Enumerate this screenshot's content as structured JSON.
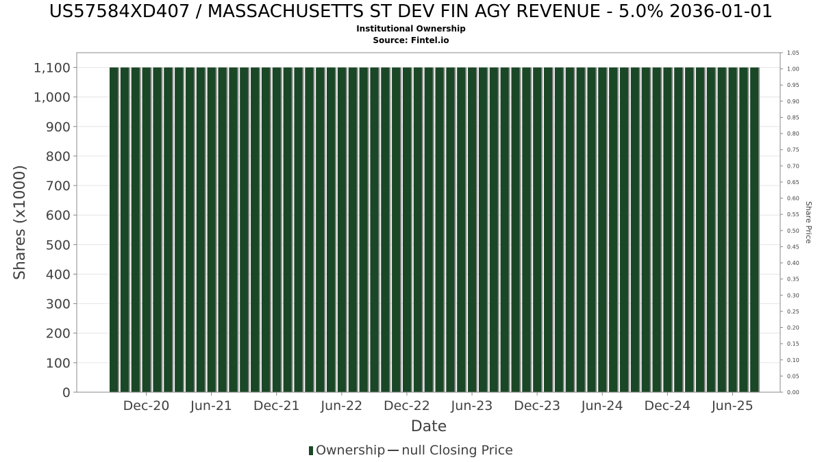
{
  "chart_data": {
    "type": "bar",
    "title": "US57584XD407 / MASSACHUSETTS ST DEV FIN AGY REVENUE - 5.0% 2036-01-01",
    "subtitle": "Institutional Ownership",
    "source": "Source: Fintel.io",
    "xlabel": "Date",
    "ylabel": "Shares (x1000)",
    "y2label": "Share Price",
    "ylim": [
      0,
      1150
    ],
    "y2lim": [
      0,
      1.05
    ],
    "y_ticks": [
      "0",
      "100",
      "200",
      "300",
      "400",
      "500",
      "600",
      "700",
      "800",
      "900",
      "1,000",
      "1,100"
    ],
    "y_tick_values": [
      0,
      100,
      200,
      300,
      400,
      500,
      600,
      700,
      800,
      900,
      1000,
      1100
    ],
    "y2_ticks": [
      "0.00",
      "0.05",
      "0.10",
      "0.15",
      "0.20",
      "0.25",
      "0.30",
      "0.35",
      "0.40",
      "0.45",
      "0.50",
      "0.55",
      "0.60",
      "0.65",
      "0.70",
      "0.75",
      "0.80",
      "0.85",
      "0.90",
      "0.95",
      "1.00",
      "1.05"
    ],
    "x_ticks": [
      "Dec-20",
      "Jun-21",
      "Dec-21",
      "Jun-22",
      "Dec-22",
      "Jun-23",
      "Dec-23",
      "Jun-24",
      "Dec-24",
      "Jun-25"
    ],
    "x_tick_bar_index": [
      3,
      9,
      15,
      21,
      27,
      33,
      39,
      45,
      51,
      57
    ],
    "grid": true,
    "legend_position": "bottom",
    "series": [
      {
        "name": "Ownership",
        "color": "#1a4726",
        "values": [
          1100,
          1100,
          1100,
          1100,
          1100,
          1100,
          1100,
          1100,
          1100,
          1100,
          1100,
          1100,
          1100,
          1100,
          1100,
          1100,
          1100,
          1100,
          1100,
          1100,
          1100,
          1100,
          1100,
          1100,
          1100,
          1100,
          1100,
          1100,
          1100,
          1100,
          1100,
          1100,
          1100,
          1100,
          1100,
          1100,
          1100,
          1100,
          1100,
          1100,
          1100,
          1100,
          1100,
          1100,
          1100,
          1100,
          1100,
          1100,
          1100,
          1100,
          1100,
          1100,
          1100,
          1100,
          1100,
          1100,
          1100,
          1100,
          1100,
          1100
        ]
      }
    ],
    "legend": {
      "ownership": "Ownership",
      "closing_price": "null Closing Price"
    }
  }
}
